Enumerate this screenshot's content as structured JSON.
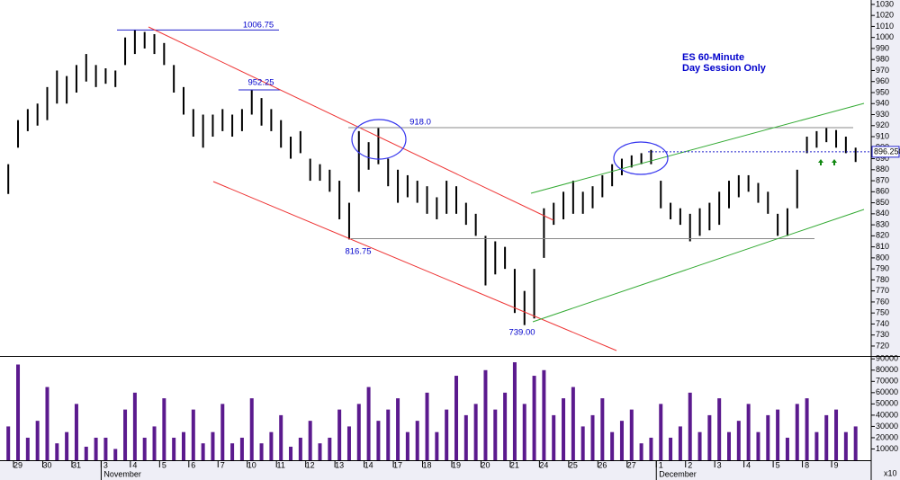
{
  "chart_data": [
    {
      "type": "hlbar",
      "title": "ES 60-Minute",
      "subtitle": "Day Session Only",
      "color": "#000000",
      "xlim": [
        -0.85,
        88.6
      ],
      "ylim": [
        711,
        1034
      ],
      "yticks": [
        720,
        730,
        740,
        750,
        760,
        770,
        780,
        790,
        800,
        810,
        820,
        830,
        840,
        850,
        860,
        870,
        880,
        890,
        900,
        910,
        920,
        930,
        940,
        950,
        960,
        970,
        980,
        990,
        1000,
        1010,
        1020,
        1030
      ],
      "high": [
        885,
        925,
        935,
        940,
        955,
        970,
        965,
        975,
        985,
        975,
        972,
        970,
        1000,
        1006.75,
        1005,
        1003,
        995,
        975,
        955,
        935,
        930,
        930,
        935,
        930,
        935,
        952.25,
        945,
        935,
        925,
        910,
        915,
        890,
        885,
        880,
        870,
        850,
        915,
        905,
        918,
        890,
        880,
        875,
        870,
        865,
        855,
        870,
        865,
        850,
        840,
        820,
        815,
        810,
        790,
        770,
        790,
        845,
        850,
        860,
        870,
        860,
        865,
        875,
        885,
        890,
        893,
        895,
        898,
        870,
        850,
        845,
        840,
        845,
        850,
        860,
        870,
        875,
        875,
        868,
        860,
        840,
        845,
        880,
        910,
        915,
        918,
        916,
        910,
        900
      ],
      "low": [
        858,
        900,
        915,
        920,
        925,
        940,
        940,
        950,
        960,
        955,
        958,
        955,
        975,
        985,
        990,
        985,
        975,
        950,
        930,
        910,
        900,
        910,
        915,
        910,
        915,
        930,
        920,
        915,
        900,
        890,
        895,
        870,
        870,
        860,
        835,
        816.75,
        860,
        880,
        885,
        865,
        850,
        855,
        850,
        840,
        835,
        840,
        840,
        830,
        820,
        775,
        785,
        790,
        750,
        739,
        745,
        800,
        830,
        835,
        840,
        840,
        845,
        855,
        865,
        875,
        882,
        885,
        885,
        845,
        835,
        830,
        815,
        820,
        825,
        830,
        845,
        855,
        860,
        850,
        840,
        820,
        820,
        845,
        895,
        900,
        905,
        900,
        895,
        887
      ],
      "annotations": [
        "1006.75",
        "952.25",
        "918.0",
        "816.75",
        "739.00"
      ],
      "last_price": {
        "value": 896.25,
        "label": "896.250"
      }
    },
    {
      "type": "bar",
      "color": "#5b1a8e",
      "xlim": [
        -0.85,
        88.6
      ],
      "ylim": [
        0,
        91000
      ],
      "yticks": [
        10000,
        20000,
        30000,
        40000,
        50000,
        60000,
        70000,
        80000,
        90000
      ],
      "values": [
        30000,
        85000,
        20000,
        35000,
        65000,
        15000,
        25000,
        50000,
        12000,
        20000,
        20000,
        10000,
        45000,
        60000,
        20000,
        30000,
        55000,
        20000,
        25000,
        45000,
        15000,
        25000,
        50000,
        15000,
        20000,
        55000,
        15000,
        25000,
        40000,
        12000,
        20000,
        35000,
        15000,
        20000,
        45000,
        30000,
        50000,
        65000,
        35000,
        45000,
        55000,
        25000,
        35000,
        60000,
        25000,
        45000,
        75000,
        40000,
        50000,
        80000,
        45000,
        60000,
        87000,
        50000,
        75000,
        80000,
        40000,
        55000,
        65000,
        30000,
        40000,
        55000,
        25000,
        35000,
        45000,
        15000,
        20000,
        50000,
        20000,
        30000,
        60000,
        25000,
        40000,
        55000,
        25000,
        35000,
        50000,
        25000,
        40000,
        45000,
        20000,
        50000,
        55000,
        25000,
        40000,
        45000,
        25000,
        30000
      ],
      "xticks": [
        {
          "value": 1,
          "label": "29"
        },
        {
          "value": 4,
          "label": "30"
        },
        {
          "value": 7,
          "label": "31"
        },
        {
          "value": 10,
          "label": "3"
        },
        {
          "value": 13,
          "label": "4"
        },
        {
          "value": 16,
          "label": "5"
        },
        {
          "value": 19,
          "label": "6"
        },
        {
          "value": 22,
          "label": "7"
        },
        {
          "value": 25,
          "label": "10"
        },
        {
          "value": 28,
          "label": "11"
        },
        {
          "value": 31,
          "label": "12"
        },
        {
          "value": 34,
          "label": "13"
        },
        {
          "value": 37,
          "label": "14"
        },
        {
          "value": 40,
          "label": "17"
        },
        {
          "value": 43,
          "label": "18"
        },
        {
          "value": 46,
          "label": "19"
        },
        {
          "value": 49,
          "label": "20"
        },
        {
          "value": 52,
          "label": "21"
        },
        {
          "value": 55,
          "label": "24"
        },
        {
          "value": 58,
          "label": "25"
        },
        {
          "value": 61,
          "label": "26"
        },
        {
          "value": 64,
          "label": "27"
        },
        {
          "value": 67,
          "label": "1"
        },
        {
          "value": 70,
          "label": "2"
        },
        {
          "value": 73,
          "label": "3"
        },
        {
          "value": 76,
          "label": "4"
        },
        {
          "value": 79,
          "label": "5"
        },
        {
          "value": 82,
          "label": "8"
        },
        {
          "value": 85,
          "label": "9"
        }
      ],
      "months": [
        {
          "value": 10,
          "label": "November"
        },
        {
          "value": 67,
          "label": "December"
        }
      ],
      "scale_label": "x10"
    }
  ]
}
